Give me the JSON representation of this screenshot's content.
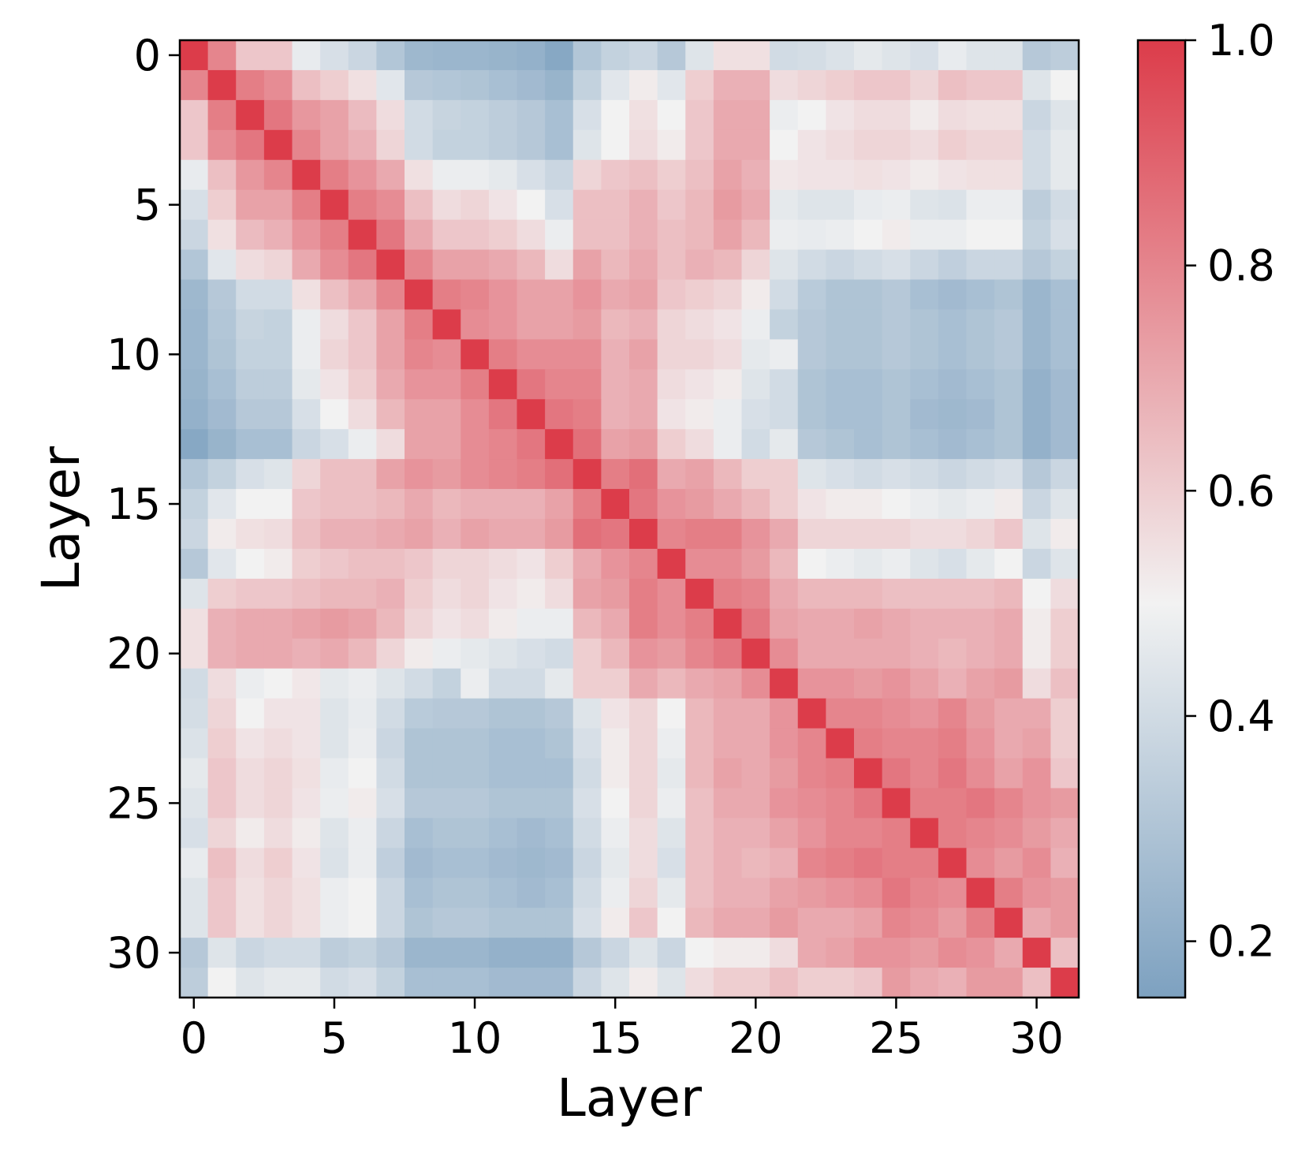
{
  "chart_data": {
    "type": "heatmap",
    "title": "",
    "xlabel": "Layer",
    "ylabel": "Layer",
    "x_ticks": [
      "0",
      "5",
      "10",
      "15",
      "20",
      "25",
      "30"
    ],
    "y_ticks": [
      "0",
      "5",
      "10",
      "15",
      "20",
      "25",
      "30"
    ],
    "tick_values": [
      0,
      5,
      10,
      15,
      20,
      25,
      30
    ],
    "n_layers": 32,
    "colorbar": {
      "min": 0.15,
      "max": 1.0,
      "ticks": [
        "0.2",
        "0.4",
        "0.6",
        "0.8",
        "1.0"
      ],
      "tick_values": [
        0.2,
        0.4,
        0.6,
        0.8,
        1.0
      ],
      "colors": {
        "low": "#7DA1C0",
        "mid": "#F2F2F2",
        "high": "#DC3C4A"
      },
      "mid_value": 0.5
    },
    "matrix": [
      [
        1.0,
        0.8,
        0.62,
        0.62,
        0.47,
        0.42,
        0.38,
        0.31,
        0.25,
        0.24,
        0.24,
        0.23,
        0.22,
        0.18,
        0.31,
        0.36,
        0.38,
        0.32,
        0.44,
        0.55,
        0.55,
        0.4,
        0.41,
        0.43,
        0.46,
        0.44,
        0.42,
        0.47,
        0.44,
        0.44,
        0.32,
        0.34
      ],
      [
        0.8,
        1.0,
        0.82,
        0.78,
        0.64,
        0.6,
        0.55,
        0.45,
        0.32,
        0.31,
        0.3,
        0.28,
        0.26,
        0.23,
        0.36,
        0.45,
        0.52,
        0.45,
        0.6,
        0.68,
        0.68,
        0.56,
        0.58,
        0.6,
        0.62,
        0.62,
        0.58,
        0.64,
        0.62,
        0.62,
        0.44,
        0.5
      ],
      [
        0.62,
        0.82,
        1.0,
        0.84,
        0.75,
        0.72,
        0.65,
        0.56,
        0.4,
        0.37,
        0.36,
        0.34,
        0.32,
        0.28,
        0.42,
        0.5,
        0.55,
        0.5,
        0.62,
        0.7,
        0.7,
        0.48,
        0.5,
        0.54,
        0.56,
        0.56,
        0.52,
        0.56,
        0.55,
        0.55,
        0.38,
        0.44
      ],
      [
        0.62,
        0.78,
        0.84,
        1.0,
        0.8,
        0.72,
        0.68,
        0.58,
        0.4,
        0.36,
        0.36,
        0.34,
        0.32,
        0.28,
        0.44,
        0.5,
        0.56,
        0.52,
        0.62,
        0.7,
        0.7,
        0.5,
        0.54,
        0.56,
        0.58,
        0.58,
        0.56,
        0.6,
        0.58,
        0.58,
        0.4,
        0.46
      ],
      [
        0.47,
        0.64,
        0.75,
        0.8,
        1.0,
        0.82,
        0.76,
        0.7,
        0.55,
        0.48,
        0.48,
        0.46,
        0.42,
        0.38,
        0.58,
        0.62,
        0.64,
        0.6,
        0.64,
        0.72,
        0.68,
        0.53,
        0.54,
        0.54,
        0.55,
        0.54,
        0.52,
        0.54,
        0.55,
        0.55,
        0.4,
        0.46
      ],
      [
        0.42,
        0.6,
        0.72,
        0.72,
        0.82,
        1.0,
        0.82,
        0.78,
        0.64,
        0.56,
        0.58,
        0.54,
        0.5,
        0.42,
        0.64,
        0.64,
        0.68,
        0.62,
        0.66,
        0.74,
        0.7,
        0.46,
        0.44,
        0.44,
        0.47,
        0.48,
        0.44,
        0.43,
        0.48,
        0.48,
        0.34,
        0.4
      ],
      [
        0.38,
        0.55,
        0.65,
        0.68,
        0.76,
        0.82,
        1.0,
        0.84,
        0.7,
        0.62,
        0.62,
        0.6,
        0.56,
        0.48,
        0.64,
        0.64,
        0.68,
        0.64,
        0.66,
        0.72,
        0.66,
        0.48,
        0.47,
        0.48,
        0.5,
        0.52,
        0.48,
        0.48,
        0.5,
        0.5,
        0.36,
        0.42
      ],
      [
        0.31,
        0.45,
        0.56,
        0.58,
        0.7,
        0.78,
        0.84,
        1.0,
        0.8,
        0.72,
        0.72,
        0.7,
        0.66,
        0.56,
        0.72,
        0.66,
        0.7,
        0.64,
        0.68,
        0.66,
        0.58,
        0.44,
        0.4,
        0.38,
        0.4,
        0.42,
        0.38,
        0.35,
        0.38,
        0.38,
        0.32,
        0.36
      ],
      [
        0.25,
        0.32,
        0.4,
        0.4,
        0.55,
        0.64,
        0.7,
        0.8,
        1.0,
        0.82,
        0.8,
        0.76,
        0.72,
        0.72,
        0.76,
        0.7,
        0.72,
        0.62,
        0.6,
        0.58,
        0.52,
        0.4,
        0.33,
        0.3,
        0.3,
        0.32,
        0.28,
        0.26,
        0.28,
        0.3,
        0.24,
        0.28
      ],
      [
        0.24,
        0.31,
        0.37,
        0.36,
        0.48,
        0.56,
        0.62,
        0.72,
        0.82,
        1.0,
        0.78,
        0.76,
        0.72,
        0.72,
        0.74,
        0.66,
        0.68,
        0.58,
        0.56,
        0.54,
        0.48,
        0.36,
        0.32,
        0.3,
        0.3,
        0.32,
        0.3,
        0.28,
        0.3,
        0.32,
        0.24,
        0.28
      ],
      [
        0.24,
        0.3,
        0.36,
        0.36,
        0.48,
        0.58,
        0.62,
        0.72,
        0.8,
        0.78,
        1.0,
        0.82,
        0.78,
        0.78,
        0.78,
        0.68,
        0.72,
        0.58,
        0.58,
        0.56,
        0.46,
        0.48,
        0.32,
        0.3,
        0.3,
        0.32,
        0.3,
        0.28,
        0.3,
        0.32,
        0.24,
        0.28
      ],
      [
        0.23,
        0.28,
        0.34,
        0.34,
        0.46,
        0.54,
        0.6,
        0.7,
        0.76,
        0.76,
        0.82,
        1.0,
        0.84,
        0.8,
        0.8,
        0.68,
        0.7,
        0.56,
        0.54,
        0.52,
        0.44,
        0.4,
        0.3,
        0.28,
        0.28,
        0.3,
        0.28,
        0.26,
        0.28,
        0.3,
        0.22,
        0.26
      ],
      [
        0.22,
        0.26,
        0.32,
        0.32,
        0.42,
        0.5,
        0.56,
        0.66,
        0.72,
        0.72,
        0.78,
        0.84,
        1.0,
        0.84,
        0.82,
        0.68,
        0.7,
        0.54,
        0.52,
        0.48,
        0.42,
        0.4,
        0.3,
        0.28,
        0.28,
        0.3,
        0.26,
        0.25,
        0.26,
        0.3,
        0.22,
        0.26
      ],
      [
        0.18,
        0.23,
        0.28,
        0.28,
        0.38,
        0.42,
        0.48,
        0.56,
        0.72,
        0.72,
        0.78,
        0.8,
        0.84,
        1.0,
        0.86,
        0.72,
        0.74,
        0.6,
        0.56,
        0.48,
        0.4,
        0.46,
        0.32,
        0.3,
        0.28,
        0.3,
        0.28,
        0.26,
        0.28,
        0.3,
        0.22,
        0.26
      ],
      [
        0.31,
        0.36,
        0.42,
        0.44,
        0.58,
        0.64,
        0.64,
        0.72,
        0.76,
        0.74,
        0.78,
        0.8,
        0.82,
        0.86,
        1.0,
        0.82,
        0.86,
        0.7,
        0.72,
        0.66,
        0.6,
        0.6,
        0.44,
        0.42,
        0.4,
        0.42,
        0.4,
        0.38,
        0.4,
        0.42,
        0.32,
        0.38
      ],
      [
        0.36,
        0.45,
        0.5,
        0.5,
        0.62,
        0.64,
        0.64,
        0.66,
        0.7,
        0.66,
        0.68,
        0.68,
        0.68,
        0.72,
        0.82,
        1.0,
        0.84,
        0.76,
        0.74,
        0.7,
        0.66,
        0.6,
        0.54,
        0.52,
        0.52,
        0.5,
        0.48,
        0.46,
        0.48,
        0.52,
        0.38,
        0.44
      ],
      [
        0.38,
        0.52,
        0.55,
        0.56,
        0.64,
        0.68,
        0.68,
        0.7,
        0.72,
        0.68,
        0.72,
        0.7,
        0.7,
        0.74,
        0.86,
        0.84,
        1.0,
        0.8,
        0.82,
        0.82,
        0.76,
        0.7,
        0.58,
        0.58,
        0.58,
        0.58,
        0.56,
        0.56,
        0.58,
        0.62,
        0.44,
        0.52
      ],
      [
        0.32,
        0.45,
        0.5,
        0.52,
        0.6,
        0.62,
        0.64,
        0.64,
        0.62,
        0.58,
        0.58,
        0.56,
        0.54,
        0.6,
        0.7,
        0.76,
        0.8,
        1.0,
        0.78,
        0.78,
        0.74,
        0.66,
        0.5,
        0.48,
        0.46,
        0.48,
        0.44,
        0.42,
        0.46,
        0.5,
        0.38,
        0.44
      ],
      [
        0.44,
        0.6,
        0.62,
        0.62,
        0.64,
        0.66,
        0.66,
        0.68,
        0.6,
        0.56,
        0.58,
        0.54,
        0.52,
        0.56,
        0.72,
        0.74,
        0.82,
        0.78,
        1.0,
        0.82,
        0.8,
        0.7,
        0.66,
        0.66,
        0.66,
        0.64,
        0.64,
        0.64,
        0.64,
        0.66,
        0.5,
        0.56
      ],
      [
        0.55,
        0.68,
        0.7,
        0.7,
        0.72,
        0.74,
        0.72,
        0.66,
        0.58,
        0.54,
        0.56,
        0.52,
        0.48,
        0.48,
        0.66,
        0.7,
        0.82,
        0.78,
        0.82,
        1.0,
        0.84,
        0.72,
        0.7,
        0.7,
        0.72,
        0.7,
        0.68,
        0.68,
        0.68,
        0.7,
        0.52,
        0.6
      ],
      [
        0.55,
        0.68,
        0.7,
        0.7,
        0.68,
        0.7,
        0.66,
        0.58,
        0.52,
        0.48,
        0.46,
        0.44,
        0.42,
        0.4,
        0.6,
        0.66,
        0.76,
        0.74,
        0.8,
        0.84,
        1.0,
        0.78,
        0.7,
        0.7,
        0.7,
        0.7,
        0.68,
        0.66,
        0.68,
        0.7,
        0.52,
        0.6
      ],
      [
        0.4,
        0.56,
        0.48,
        0.5,
        0.53,
        0.46,
        0.48,
        0.44,
        0.4,
        0.36,
        0.48,
        0.4,
        0.4,
        0.46,
        0.6,
        0.6,
        0.7,
        0.66,
        0.7,
        0.72,
        0.78,
        1.0,
        0.76,
        0.76,
        0.74,
        0.76,
        0.72,
        0.68,
        0.72,
        0.74,
        0.56,
        0.64
      ],
      [
        0.41,
        0.58,
        0.5,
        0.54,
        0.54,
        0.44,
        0.47,
        0.4,
        0.33,
        0.32,
        0.32,
        0.3,
        0.3,
        0.32,
        0.44,
        0.54,
        0.58,
        0.5,
        0.66,
        0.7,
        0.7,
        0.76,
        1.0,
        0.8,
        0.8,
        0.78,
        0.76,
        0.8,
        0.74,
        0.7,
        0.7,
        0.6
      ],
      [
        0.43,
        0.6,
        0.54,
        0.56,
        0.54,
        0.44,
        0.48,
        0.38,
        0.3,
        0.3,
        0.3,
        0.28,
        0.28,
        0.3,
        0.42,
        0.52,
        0.58,
        0.48,
        0.66,
        0.7,
        0.7,
        0.76,
        0.8,
        1.0,
        0.82,
        0.8,
        0.8,
        0.82,
        0.76,
        0.7,
        0.72,
        0.6
      ],
      [
        0.46,
        0.62,
        0.56,
        0.58,
        0.55,
        0.47,
        0.5,
        0.4,
        0.3,
        0.3,
        0.3,
        0.28,
        0.28,
        0.28,
        0.4,
        0.52,
        0.58,
        0.46,
        0.66,
        0.72,
        0.7,
        0.74,
        0.8,
        0.82,
        1.0,
        0.84,
        0.8,
        0.84,
        0.78,
        0.72,
        0.76,
        0.62
      ],
      [
        0.44,
        0.62,
        0.56,
        0.58,
        0.54,
        0.48,
        0.52,
        0.42,
        0.32,
        0.32,
        0.32,
        0.3,
        0.3,
        0.3,
        0.42,
        0.5,
        0.58,
        0.48,
        0.64,
        0.7,
        0.7,
        0.76,
        0.78,
        0.8,
        0.84,
        1.0,
        0.82,
        0.82,
        0.84,
        0.8,
        0.76,
        0.74
      ],
      [
        0.42,
        0.58,
        0.52,
        0.56,
        0.52,
        0.44,
        0.48,
        0.38,
        0.28,
        0.3,
        0.3,
        0.28,
        0.26,
        0.28,
        0.4,
        0.48,
        0.56,
        0.44,
        0.64,
        0.68,
        0.68,
        0.72,
        0.76,
        0.8,
        0.8,
        0.82,
        1.0,
        0.82,
        0.8,
        0.78,
        0.74,
        0.7
      ],
      [
        0.47,
        0.64,
        0.56,
        0.6,
        0.54,
        0.43,
        0.48,
        0.35,
        0.26,
        0.28,
        0.28,
        0.26,
        0.25,
        0.26,
        0.38,
        0.46,
        0.56,
        0.42,
        0.64,
        0.68,
        0.66,
        0.68,
        0.8,
        0.82,
        0.84,
        0.82,
        0.82,
        1.0,
        0.78,
        0.74,
        0.78,
        0.68
      ],
      [
        0.44,
        0.62,
        0.55,
        0.58,
        0.55,
        0.48,
        0.5,
        0.38,
        0.28,
        0.3,
        0.3,
        0.28,
        0.26,
        0.28,
        0.4,
        0.48,
        0.58,
        0.46,
        0.64,
        0.68,
        0.68,
        0.72,
        0.74,
        0.76,
        0.78,
        0.84,
        0.8,
        0.78,
        1.0,
        0.82,
        0.76,
        0.74
      ],
      [
        0.44,
        0.62,
        0.55,
        0.58,
        0.55,
        0.48,
        0.5,
        0.38,
        0.3,
        0.32,
        0.32,
        0.3,
        0.3,
        0.3,
        0.42,
        0.52,
        0.62,
        0.5,
        0.66,
        0.7,
        0.7,
        0.74,
        0.7,
        0.7,
        0.72,
        0.8,
        0.78,
        0.74,
        0.82,
        1.0,
        0.7,
        0.74
      ],
      [
        0.32,
        0.44,
        0.38,
        0.4,
        0.4,
        0.34,
        0.36,
        0.32,
        0.24,
        0.24,
        0.24,
        0.22,
        0.22,
        0.22,
        0.32,
        0.38,
        0.44,
        0.38,
        0.5,
        0.52,
        0.52,
        0.56,
        0.7,
        0.72,
        0.76,
        0.76,
        0.74,
        0.78,
        0.76,
        0.7,
        1.0,
        0.64
      ],
      [
        0.34,
        0.5,
        0.44,
        0.46,
        0.46,
        0.4,
        0.42,
        0.36,
        0.28,
        0.28,
        0.28,
        0.26,
        0.26,
        0.26,
        0.38,
        0.44,
        0.52,
        0.44,
        0.56,
        0.6,
        0.6,
        0.64,
        0.6,
        0.6,
        0.62,
        0.74,
        0.7,
        0.68,
        0.74,
        0.74,
        0.64,
        1.0
      ]
    ]
  }
}
